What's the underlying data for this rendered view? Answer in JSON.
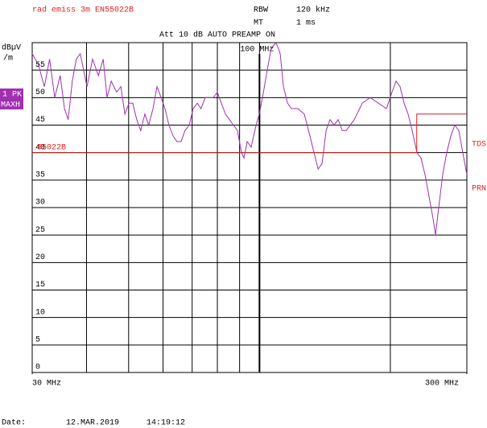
{
  "chart_data": {
    "type": "line",
    "title": "rad emiss 3m EN55022B",
    "title_color": "#e02020",
    "settings": [
      {
        "label": "RBW",
        "value": "120 kHz"
      },
      {
        "label": "MT",
        "value": "1 ms"
      }
    ],
    "subtitle": "Att 10 dB AUTO PREAMP ON",
    "ylabel": [
      "dBµV",
      "/m"
    ],
    "trace_label": [
      "1 PK",
      "MAXH"
    ],
    "side_labels": [
      "TDS",
      "PRN"
    ],
    "log_x": true,
    "xlim": [
      30,
      300
    ],
    "ylim": [
      0,
      60
    ],
    "xticks": [
      {
        "value": 30,
        "label": "30 MHz"
      },
      {
        "value": 300,
        "label": "300 MHz"
      }
    ],
    "xgrid": [
      40,
      50,
      60,
      70,
      80,
      90,
      100,
      200
    ],
    "yticks": [
      0,
      5,
      10,
      15,
      20,
      25,
      30,
      35,
      40,
      45,
      50,
      55
    ],
    "grid": true,
    "marker": {
      "x": 100,
      "label": "100 MHz"
    },
    "series": [
      {
        "name": "1 PK MAXH",
        "color": "#a030b0",
        "x": [
          30.0,
          31.0,
          32.0,
          32.9,
          33.8,
          34.8,
          35.6,
          36.3,
          37.1,
          37.9,
          38.7,
          40.1,
          41.3,
          42.6,
          43.7,
          44.6,
          45.6,
          46.9,
          48.0,
          49.0,
          50.1,
          51.1,
          52.2,
          53.3,
          54.5,
          55.6,
          56.9,
          58.1,
          59.4,
          60.6,
          61.9,
          63.3,
          64.6,
          66.0,
          67.4,
          68.9,
          70.4,
          71.9,
          73.4,
          75.0,
          76.6,
          78.3,
          80.0,
          81.7,
          83.5,
          85.3,
          87.1,
          89.0,
          90.9,
          92.1,
          93.7,
          95.7,
          98.2,
          99.9,
          101.6,
          104.2,
          106.4,
          109.2,
          111.6,
          113.5,
          116.0,
          118.4,
          122.6,
          126.8,
          130.7,
          133.5,
          136.4,
          139.3,
          142.3,
          145.3,
          148.5,
          151.7,
          155.0,
          158.3,
          165.2,
          172.4,
          179.8,
          187.7,
          195.9,
          201.8,
          206.1,
          210.6,
          215.1,
          219.8,
          224.5,
          230.3,
          235.3,
          240.3,
          245.5,
          250.8,
          254.0,
          258.4,
          264.0,
          269.7,
          275.5,
          281.4,
          287.5,
          293.6,
          300.0
        ],
        "values": [
          58,
          56,
          52,
          57,
          50,
          54,
          48,
          46,
          53,
          57,
          58,
          52,
          57,
          54,
          57,
          50,
          53,
          51,
          52,
          47,
          49,
          49,
          46,
          44,
          47,
          45,
          48,
          52,
          50,
          48,
          45,
          43,
          42,
          42,
          44,
          45,
          48,
          49,
          48,
          50,
          50,
          50,
          51,
          49,
          47,
          46,
          45,
          44,
          40,
          39,
          42,
          41,
          45,
          47,
          50,
          55,
          59,
          60,
          58,
          52,
          49,
          48,
          48,
          47,
          43,
          40,
          37,
          38,
          44,
          46,
          45,
          46,
          44,
          44,
          46,
          49,
          50,
          49,
          48,
          51,
          53,
          52,
          49,
          47,
          44,
          40,
          39,
          36,
          32,
          28,
          25,
          30,
          36,
          40,
          43,
          45,
          44,
          40,
          36
        ]
      },
      {
        "name": "55022B",
        "color": "#e02020",
        "x": [
          30,
          230,
          230,
          300
        ],
        "values": [
          40,
          40,
          47,
          47
        ]
      }
    ],
    "footer": {
      "label": "Date:",
      "date": "12.MAR.2019",
      "time": "14:19:12"
    }
  }
}
